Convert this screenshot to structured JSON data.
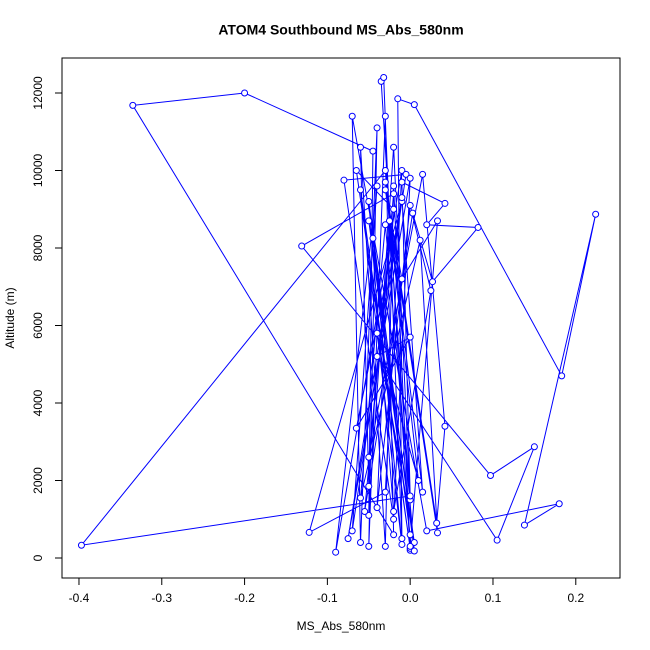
{
  "chart_data": {
    "type": "scatter-line",
    "title": "ATOM4 Southbound MS_Abs_580nm",
    "x_label": "MS_Abs_580nm",
    "y_label": "Altitude (m)",
    "color": "#0000ff",
    "xlim": [
      -0.4205,
      0.2534
    ],
    "ylim": [
      -516,
      12903
    ],
    "xticks": [
      -0.4,
      -0.3,
      -0.2,
      -0.1,
      {
        "value": 0,
        "label": "0.0"
      },
      0.1,
      0.2
    ],
    "yticks": [
      0,
      2000,
      4000,
      6000,
      8000,
      10000,
      12000
    ],
    "x": [
      -0.05,
      -0.06,
      -0.03,
      -0.02,
      0.0,
      -0.035,
      -0.032,
      -0.01,
      -0.015,
      0.005,
      0.183,
      0.224,
      0.138,
      0.18,
      0.02,
      -0.07,
      -0.06,
      -0.04,
      -0.05,
      -0.03,
      -0.02,
      -0.335,
      -0.2,
      -0.045,
      -0.05,
      -0.02,
      0.0,
      -0.03,
      -0.397,
      0.0,
      -0.01,
      0.042,
      0.02,
      0.082,
      0.027,
      0.003,
      -0.055,
      -0.02,
      -0.131,
      0.097,
      0.15,
      0.105,
      -0.04,
      0.0,
      -0.065,
      -0.01,
      -0.122,
      -0.03,
      -0.01,
      -0.09,
      -0.04,
      -0.07,
      -0.005,
      -0.08,
      -0.02,
      0.0,
      -0.075,
      -0.01,
      0.015,
      -0.03,
      0.032,
      0.042,
      0.015,
      -0.05,
      -0.02,
      -0.065,
      0.0,
      -0.06,
      -0.01,
      -0.045,
      0.0,
      -0.05,
      0.005,
      -0.04,
      0.01,
      -0.025,
      -0.04,
      0.0,
      0.025,
      -0.02,
      -0.05,
      0.005,
      -0.03,
      -0.06,
      0.012,
      0.033,
      -0.03,
      -0.01,
      0.033,
      0.0
    ],
    "values": [
      1850,
      10600,
      300,
      9600,
      200,
      12300,
      12400,
      500,
      11850,
      11700,
      4700,
      8870,
      850,
      1400,
      700,
      11400,
      400,
      11100,
      300,
      11400,
      600,
      11680,
      12000,
      10500,
      1100,
      10600,
      1500,
      10000,
      330,
      1600,
      9700,
      9150,
      8600,
      8530,
      7130,
      8900,
      1200,
      9400,
      8050,
      2130,
      2870,
      460,
      5200,
      5700,
      3350,
      9200,
      660,
      1700,
      10000,
      150,
      9600,
      700,
      9900,
      9750,
      1000,
      9800,
      500,
      9300,
      1700,
      9700,
      900,
      3400,
      9900,
      2600,
      9000,
      10000,
      250,
      9500,
      350,
      8250,
      600,
      8700,
      400,
      5800,
      2000,
      8700,
      1300,
      9100,
      6900,
      1200,
      9200,
      180,
      8600,
      1550,
      8200,
      650,
      9500,
      7200,
      8700,
      300
    ]
  }
}
